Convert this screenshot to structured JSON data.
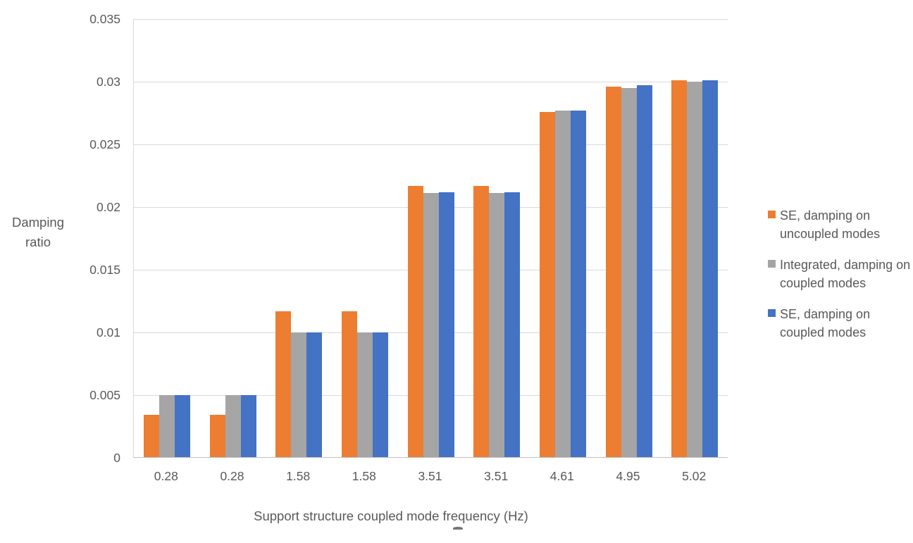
{
  "chart_data": {
    "type": "bar",
    "title": "",
    "xlabel": "Support structure coupled mode frequency (Hz)",
    "ylabel": "Damping ratio",
    "ylabel_multiline": "Damping\nratio",
    "categories": [
      "0.28",
      "0.28",
      "1.58",
      "1.58",
      "3.51",
      "3.51",
      "4.61",
      "4.95",
      "5.02"
    ],
    "series": [
      {
        "name": "SE, damping on uncoupled modes",
        "color": "#ED7D31",
        "values": [
          0.0034,
          0.0034,
          0.0117,
          0.0117,
          0.0217,
          0.0217,
          0.0276,
          0.0296,
          0.0301
        ]
      },
      {
        "name": "Integrated, damping on coupled modes",
        "color": "#A5A5A5",
        "values": [
          0.005,
          0.005,
          0.01,
          0.01,
          0.0211,
          0.0211,
          0.0277,
          0.0295,
          0.03
        ]
      },
      {
        "name": "SE, damping on coupled modes",
        "color": "#4472C4",
        "values": [
          0.005,
          0.005,
          0.01,
          0.01,
          0.0212,
          0.0212,
          0.0277,
          0.0297,
          0.0301
        ]
      }
    ],
    "ylim": [
      0,
      0.035
    ],
    "yticks": [
      0,
      0.005,
      0.01,
      0.015,
      0.02,
      0.025,
      0.03,
      0.035
    ],
    "ytick_labels": [
      "0",
      "0.005",
      "0.01",
      "0.015",
      "0.02",
      "0.025",
      "0.03",
      "0.035"
    ],
    "grid": true,
    "legend_position": "right",
    "colors": {
      "text": "#595959",
      "gridline": "#D9D9D9",
      "axis_line": "#BFBFBF",
      "background": "#FFFFFF"
    }
  }
}
